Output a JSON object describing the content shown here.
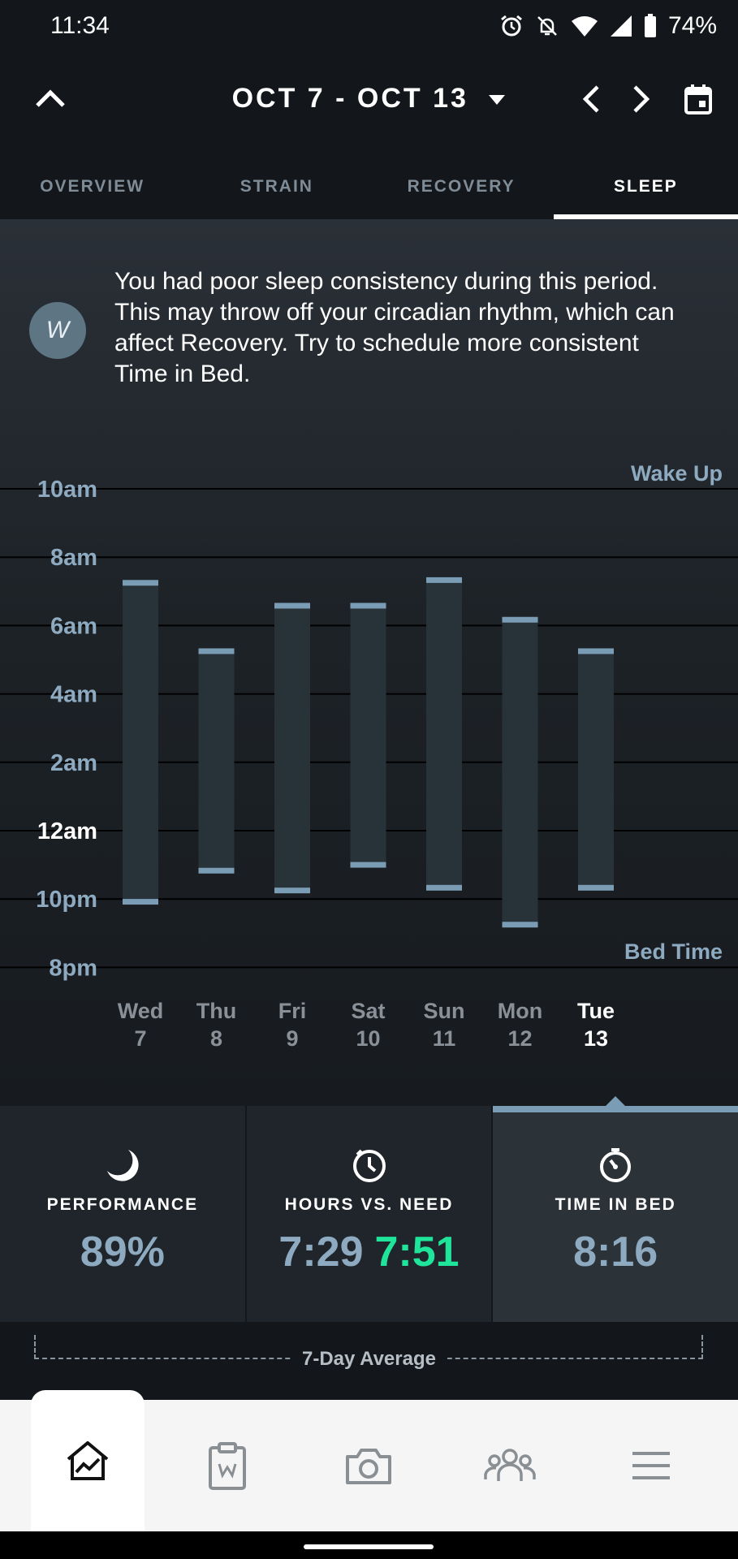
{
  "status_bar": {
    "time": "11:34",
    "battery": "74%"
  },
  "header": {
    "date_range": "OCT 7 - OCT 13"
  },
  "tabs": [
    {
      "label": "OVERVIEW",
      "active": false
    },
    {
      "label": "STRAIN",
      "active": false
    },
    {
      "label": "RECOVERY",
      "active": false
    },
    {
      "label": "SLEEP",
      "active": true
    }
  ],
  "message": {
    "logo": "W",
    "text": "You had poor sleep consistency during this period. This may throw off your circadian rhythm, which can affect Recovery. Try to schedule more consistent Time in Bed."
  },
  "chart_data": {
    "type": "bar",
    "y_ticks": [
      "10am",
      "8am",
      "6am",
      "4am",
      "2am",
      "12am",
      "10pm",
      "8pm"
    ],
    "y_tick_emphasis": "12am",
    "ylim_hours_after_8pm": [
      0,
      14
    ],
    "top_label": "Wake Up",
    "bottom_label": "Bed Time",
    "categories": [
      {
        "day": "Wed",
        "date": "7"
      },
      {
        "day": "Thu",
        "date": "8"
      },
      {
        "day": "Fri",
        "date": "9"
      },
      {
        "day": "Sat",
        "date": "10"
      },
      {
        "day": "Sun",
        "date": "11"
      },
      {
        "day": "Mon",
        "date": "12"
      },
      {
        "day": "Tue",
        "date": "13"
      }
    ],
    "selected_index": 6,
    "series": [
      {
        "name": "Bed Time",
        "values": [
          "9:55pm",
          "10:50pm",
          "10:15pm",
          "11:00pm",
          "10:20pm",
          "9:15pm",
          "10:20pm"
        ]
      },
      {
        "name": "Wake Up",
        "values": [
          "7:15am",
          "5:15am",
          "6:35am",
          "6:35am",
          "7:20am",
          "6:10am",
          "5:15am"
        ]
      }
    ],
    "bed_hours_after_8pm": [
      1.92,
      2.83,
      2.25,
      3.0,
      2.33,
      1.25,
      2.33
    ],
    "wake_hours_after_8pm": [
      11.25,
      9.25,
      10.58,
      10.58,
      11.33,
      10.17,
      9.25
    ],
    "colors": {
      "bar": "#283239",
      "cap": "#7a9db5",
      "tick": "#8eaac0"
    }
  },
  "stats": [
    {
      "icon": "moon-icon",
      "label": "PERFORMANCE",
      "value": "89%",
      "active": false
    },
    {
      "icon": "clock-icon",
      "label": "HOURS VS. NEED",
      "value": "7:29",
      "value_secondary": "7:51",
      "active": false
    },
    {
      "icon": "stopwatch-icon",
      "label": "TIME IN BED",
      "value": "8:16",
      "active": true
    }
  ],
  "average_label": "7-Day Average",
  "bottom_nav": [
    {
      "icon": "home-chart-icon",
      "active": true
    },
    {
      "icon": "journal-icon",
      "active": false
    },
    {
      "icon": "camera-icon",
      "active": false
    },
    {
      "icon": "team-icon",
      "active": false
    },
    {
      "icon": "menu-icon",
      "active": false
    }
  ],
  "colors": {
    "accent": "#7a9db5",
    "green": "#1fe59a",
    "background": "#13171b"
  }
}
